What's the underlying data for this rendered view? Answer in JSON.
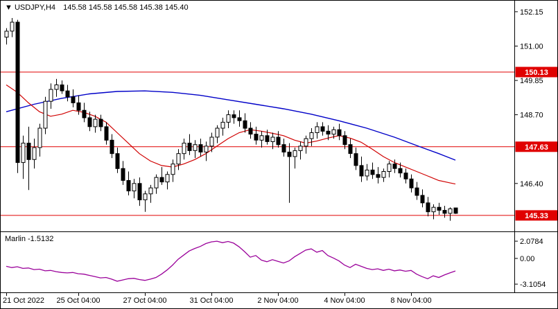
{
  "header": {
    "marker": "▼",
    "symbol": "USDJPY,H4",
    "ohlc_text": "145.58 145.58 145.58 145.38 145.40"
  },
  "indicator_panel": {
    "name": "Marlin",
    "current_value": "-1.5132",
    "axis_labels": [
      "2.0784",
      "0.00",
      "-3.1054"
    ]
  },
  "price_axis": {
    "tick_labels": [
      "152.15",
      "151.00",
      "149.85",
      "148.70",
      "146.40"
    ]
  },
  "time_axis": {
    "labels": [
      {
        "text": "21 Oct 2022",
        "bar": 0
      },
      {
        "text": "25 Oct 04:00",
        "bar": 13
      },
      {
        "text": "27 Oct 04:00",
        "bar": 25
      },
      {
        "text": "31 Oct 04:00",
        "bar": 37
      },
      {
        "text": "2 Nov 04:00",
        "bar": 49
      },
      {
        "text": "4 Nov 04:00",
        "bar": 61
      },
      {
        "text": "8 Nov 04:00",
        "bar": 73
      }
    ]
  },
  "colors": {
    "background": "#ffffff",
    "text": "#000000",
    "up": "#ffffff",
    "down": "#000000",
    "wick": "#000000",
    "ma_fast": "#d00000",
    "ma_slow": "#0000c8",
    "level": "#e00000",
    "level_label_text": "#ffffff",
    "indicator": "#9a009a"
  },
  "chart_data": {
    "type": "candlestick",
    "title": "USDJPY H4",
    "symbol": "USDJPY",
    "timeframe": "H4",
    "price_levels": [
      150.13,
      147.63,
      145.33
    ],
    "y_axis_ticks": [
      152.15,
      151.0,
      149.85,
      148.7,
      146.4
    ],
    "candles": [
      [
        151.3,
        151.6,
        151.05,
        151.5
      ],
      [
        151.5,
        151.94,
        151.3,
        151.8
      ],
      [
        151.8,
        151.88,
        146.75,
        147.1
      ],
      [
        147.1,
        148.0,
        146.55,
        147.75
      ],
      [
        147.75,
        148.3,
        146.18,
        147.2
      ],
      [
        147.2,
        147.9,
        146.9,
        147.6
      ],
      [
        147.6,
        148.4,
        147.3,
        148.25
      ],
      [
        148.25,
        149.3,
        148.05,
        149.15
      ],
      [
        149.15,
        149.75,
        148.9,
        149.55
      ],
      [
        149.55,
        149.9,
        149.3,
        149.7
      ],
      [
        149.7,
        149.85,
        149.4,
        149.5
      ],
      [
        149.5,
        149.7,
        149.15,
        149.3
      ],
      [
        149.3,
        149.55,
        148.95,
        149.1
      ],
      [
        149.1,
        149.35,
        148.7,
        148.85
      ],
      [
        148.85,
        149.1,
        148.45,
        148.6
      ],
      [
        148.6,
        148.8,
        148.15,
        148.3
      ],
      [
        148.3,
        148.7,
        148.1,
        148.55
      ],
      [
        148.55,
        148.7,
        148.15,
        148.3
      ],
      [
        148.3,
        148.45,
        147.7,
        147.85
      ],
      [
        147.85,
        148.05,
        147.25,
        147.4
      ],
      [
        147.4,
        147.6,
        146.75,
        146.9
      ],
      [
        146.9,
        147.15,
        146.35,
        146.5
      ],
      [
        146.5,
        146.8,
        146.0,
        146.15
      ],
      [
        146.15,
        146.55,
        145.9,
        146.4
      ],
      [
        146.4,
        146.6,
        145.65,
        145.85
      ],
      [
        145.85,
        146.15,
        145.45,
        146.05
      ],
      [
        146.05,
        146.35,
        145.75,
        146.25
      ],
      [
        146.25,
        146.7,
        146.05,
        146.6
      ],
      [
        146.6,
        146.95,
        146.35,
        146.45
      ],
      [
        146.45,
        146.8,
        146.2,
        146.7
      ],
      [
        146.7,
        147.2,
        146.45,
        147.05
      ],
      [
        147.05,
        147.55,
        146.85,
        147.4
      ],
      [
        147.4,
        147.9,
        147.2,
        147.75
      ],
      [
        147.75,
        148.05,
        147.35,
        147.5
      ],
      [
        147.5,
        147.85,
        147.25,
        147.7
      ],
      [
        147.7,
        147.9,
        147.3,
        147.45
      ],
      [
        147.45,
        147.8,
        147.15,
        147.65
      ],
      [
        147.65,
        148.1,
        147.45,
        147.95
      ],
      [
        147.95,
        148.35,
        147.75,
        148.25
      ],
      [
        148.25,
        148.6,
        148.0,
        148.45
      ],
      [
        148.45,
        148.85,
        148.25,
        148.7
      ],
      [
        148.7,
        148.85,
        148.4,
        148.6
      ],
      [
        148.6,
        148.85,
        148.3,
        148.5
      ],
      [
        148.5,
        148.75,
        148.1,
        148.25
      ],
      [
        148.25,
        148.45,
        147.9,
        148.05
      ],
      [
        148.05,
        148.3,
        147.7,
        147.85
      ],
      [
        147.85,
        148.15,
        147.6,
        148.0
      ],
      [
        148.0,
        148.2,
        147.7,
        147.8
      ],
      [
        147.8,
        148.1,
        147.55,
        147.95
      ],
      [
        147.95,
        148.15,
        147.6,
        147.7
      ],
      [
        147.7,
        147.9,
        147.3,
        147.45
      ],
      [
        147.45,
        147.75,
        145.75,
        147.3
      ],
      [
        147.3,
        147.6,
        146.9,
        147.5
      ],
      [
        147.5,
        147.8,
        147.2,
        147.65
      ],
      [
        147.65,
        148.0,
        147.4,
        147.9
      ],
      [
        147.9,
        148.25,
        147.65,
        148.1
      ],
      [
        148.1,
        148.45,
        147.9,
        148.3
      ],
      [
        148.3,
        148.45,
        148.0,
        148.15
      ],
      [
        148.15,
        148.35,
        147.85,
        148.05
      ],
      [
        148.05,
        148.3,
        147.9,
        148.2
      ],
      [
        148.2,
        148.4,
        147.85,
        148.0
      ],
      [
        148.0,
        148.15,
        147.55,
        147.7
      ],
      [
        147.7,
        147.9,
        147.25,
        147.4
      ],
      [
        147.4,
        147.6,
        146.85,
        147.0
      ],
      [
        147.0,
        147.3,
        146.45,
        146.65
      ],
      [
        146.65,
        147.05,
        146.5,
        146.85
      ],
      [
        146.85,
        147.1,
        146.55,
        146.7
      ],
      [
        146.7,
        146.95,
        146.4,
        146.6
      ],
      [
        146.6,
        146.9,
        146.45,
        146.8
      ],
      [
        146.8,
        147.15,
        146.6,
        147.05
      ],
      [
        147.05,
        147.2,
        146.75,
        146.9
      ],
      [
        146.9,
        147.1,
        146.6,
        146.75
      ],
      [
        146.75,
        146.9,
        146.4,
        146.55
      ],
      [
        146.55,
        146.7,
        146.1,
        146.25
      ],
      [
        146.25,
        146.45,
        145.85,
        146.0
      ],
      [
        146.0,
        146.2,
        145.6,
        145.75
      ],
      [
        145.75,
        145.95,
        145.3,
        145.45
      ],
      [
        145.45,
        145.7,
        145.2,
        145.6
      ],
      [
        145.6,
        145.75,
        145.35,
        145.5
      ],
      [
        145.5,
        145.65,
        145.25,
        145.4
      ],
      [
        145.4,
        145.6,
        145.15,
        145.55
      ],
      [
        145.58,
        145.58,
        145.38,
        145.4
      ]
    ],
    "ma_slow_points": [
      [
        0,
        148.8
      ],
      [
        5,
        149.05
      ],
      [
        10,
        149.25
      ],
      [
        15,
        149.4
      ],
      [
        20,
        149.48
      ],
      [
        25,
        149.5
      ],
      [
        30,
        149.45
      ],
      [
        35,
        149.35
      ],
      [
        40,
        149.2
      ],
      [
        45,
        149.05
      ],
      [
        50,
        148.9
      ],
      [
        55,
        148.72
      ],
      [
        60,
        148.5
      ],
      [
        65,
        148.25
      ],
      [
        70,
        147.95
      ],
      [
        75,
        147.6
      ],
      [
        78,
        147.4
      ],
      [
        81,
        147.18
      ]
    ],
    "ma_fast_points": [
      [
        0,
        149.7
      ],
      [
        2,
        149.45
      ],
      [
        4,
        149.1
      ],
      [
        6,
        148.8
      ],
      [
        8,
        148.65
      ],
      [
        10,
        148.72
      ],
      [
        12,
        148.85
      ],
      [
        14,
        148.78
      ],
      [
        16,
        148.65
      ],
      [
        18,
        148.45
      ],
      [
        20,
        148.1
      ],
      [
        22,
        147.75
      ],
      [
        24,
        147.4
      ],
      [
        26,
        147.15
      ],
      [
        28,
        147.0
      ],
      [
        30,
        146.95
      ],
      [
        32,
        147.05
      ],
      [
        34,
        147.2
      ],
      [
        36,
        147.4
      ],
      [
        38,
        147.65
      ],
      [
        40,
        147.9
      ],
      [
        42,
        148.1
      ],
      [
        44,
        148.2
      ],
      [
        46,
        148.15
      ],
      [
        48,
        148.08
      ],
      [
        50,
        148.0
      ],
      [
        52,
        147.85
      ],
      [
        54,
        147.75
      ],
      [
        56,
        147.82
      ],
      [
        58,
        147.92
      ],
      [
        60,
        148.0
      ],
      [
        62,
        147.92
      ],
      [
        64,
        147.78
      ],
      [
        66,
        147.55
      ],
      [
        68,
        147.3
      ],
      [
        70,
        147.1
      ],
      [
        72,
        146.95
      ],
      [
        74,
        146.8
      ],
      [
        76,
        146.65
      ],
      [
        78,
        146.5
      ],
      [
        80,
        146.42
      ],
      [
        81,
        146.38
      ]
    ],
    "indicator": {
      "name": "Marlin",
      "current_value": -1.5132,
      "axis_range": [
        -3.1054,
        2.0784
      ],
      "values": [
        -0.95,
        -1.1,
        -1.0,
        -1.2,
        -1.15,
        -1.35,
        -1.3,
        -1.5,
        -1.45,
        -1.6,
        -1.7,
        -1.75,
        -1.7,
        -1.85,
        -1.9,
        -2.05,
        -2.2,
        -2.35,
        -2.3,
        -2.5,
        -2.75,
        -2.6,
        -2.45,
        -2.4,
        -2.55,
        -2.65,
        -2.5,
        -2.3,
        -1.9,
        -1.4,
        -0.8,
        -0.1,
        0.4,
        0.9,
        1.2,
        1.45,
        1.8,
        2.0,
        2.08,
        1.9,
        2.05,
        1.85,
        1.4,
        0.8,
        0.15,
        0.35,
        -0.2,
        -0.4,
        -0.15,
        -0.35,
        -0.55,
        -0.3,
        0.2,
        0.6,
        1.0,
        1.15,
        0.75,
        0.95,
        0.35,
        0.05,
        -0.3,
        -0.8,
        -1.1,
        -0.7,
        -0.95,
        -1.2,
        -1.35,
        -1.25,
        -1.45,
        -1.3,
        -1.5,
        -1.4,
        -1.55,
        -1.45,
        -1.9,
        -2.2,
        -2.45,
        -2.1,
        -2.3,
        -2.0,
        -1.75,
        -1.51
      ]
    }
  }
}
